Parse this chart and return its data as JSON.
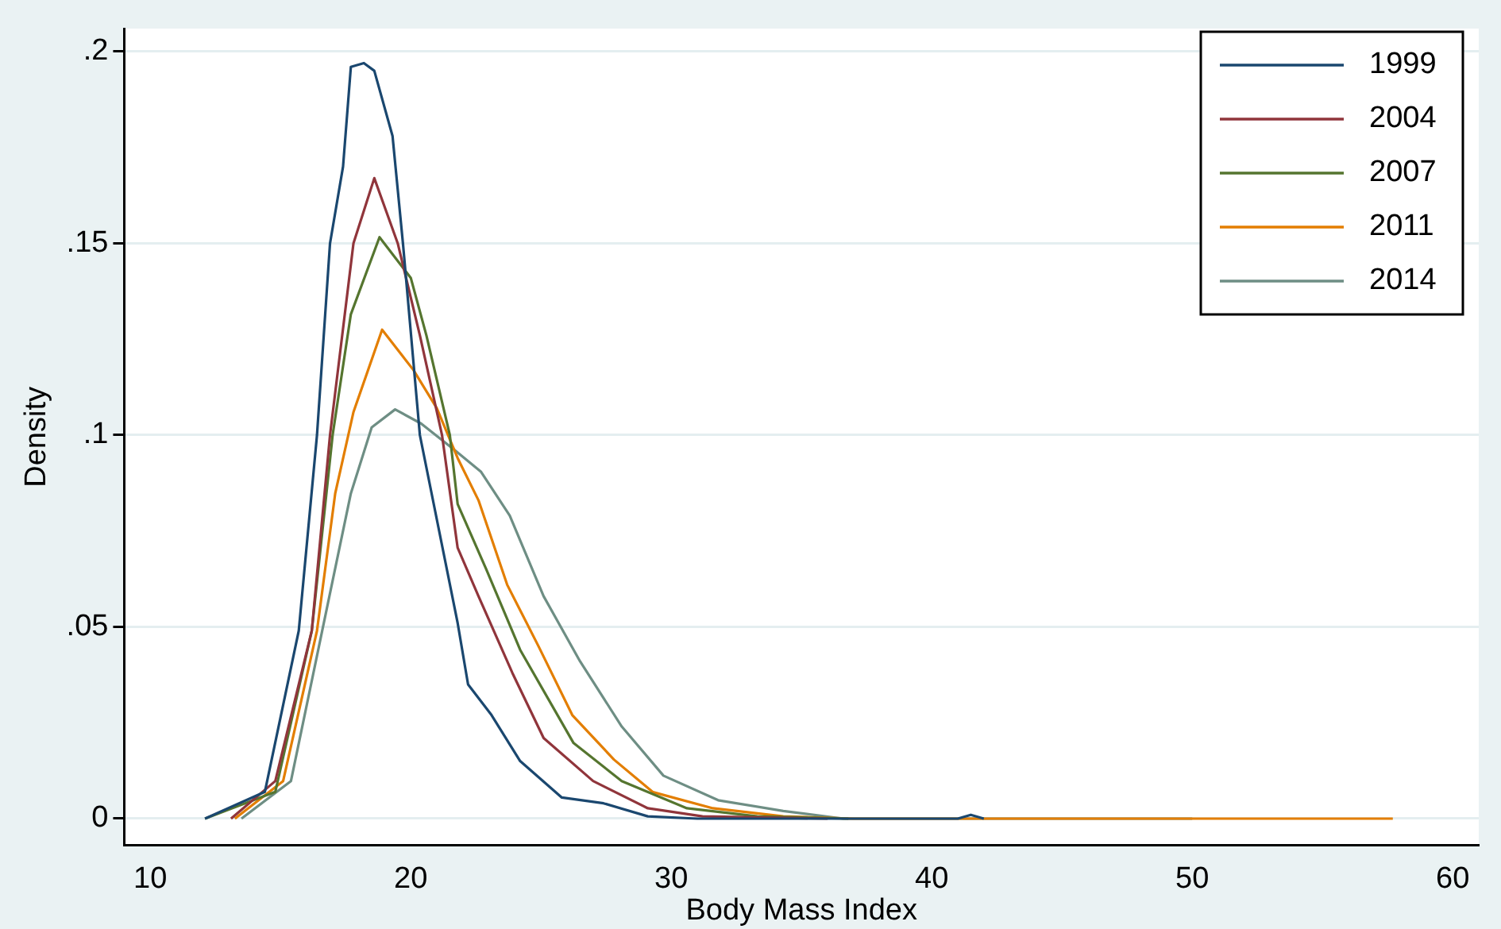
{
  "chart_data": {
    "type": "line",
    "xlabel": "Body Mass Index",
    "ylabel": "Density",
    "xlim": [
      9,
      61
    ],
    "ylim": [
      -0.007,
      0.206
    ],
    "xticks": [
      10,
      20,
      30,
      40,
      50,
      60
    ],
    "yticks": [
      0,
      {
        "value": 0.05,
        "label": ".05"
      },
      {
        "value": 0.1,
        "label": ".1"
      },
      {
        "value": 0.15,
        "label": ".15"
      },
      {
        "value": 0.2,
        "label": ".2"
      }
    ],
    "grid": "y",
    "legend": "top right",
    "marker": "none",
    "line_style": "solid",
    "series": [
      {
        "name": "1999",
        "color": "#1a476f",
        "x": [
          12.1,
          14.4,
          15.7,
          16.4,
          16.9,
          17.4,
          17.7,
          18.2,
          18.6,
          19.3,
          19.7,
          20.35,
          21.8,
          22.2,
          23.1,
          24.2,
          25.8,
          27.4,
          29.1,
          31,
          37,
          41,
          41.5,
          42
        ],
        "values": [
          0,
          0.007,
          0.049,
          0.1,
          0.15,
          0.17,
          0.196,
          0.197,
          0.195,
          0.178,
          0.15,
          0.1,
          0.051,
          0.035,
          0.027,
          0.015,
          0.0055,
          0.004,
          0.0006,
          0,
          0,
          0,
          0.001,
          0
        ]
      },
      {
        "name": "2004",
        "color": "#90353b",
        "x": [
          13.1,
          14.8,
          16.2,
          16.9,
          17.8,
          18.6,
          19.5,
          20.35,
          21.2,
          21.8,
          22.6,
          23.9,
          25.1,
          27,
          29.1,
          31.2,
          36
        ],
        "values": [
          0,
          0.0098,
          0.049,
          0.1,
          0.15,
          0.167,
          0.15,
          0.126,
          0.1,
          0.0706,
          0.058,
          0.038,
          0.021,
          0.0098,
          0.0027,
          0.0006,
          0
        ]
      },
      {
        "name": "2007",
        "color": "#55752f",
        "x": [
          12.1,
          14.8,
          16.2,
          17,
          17.7,
          18.8,
          20,
          20.6,
          21.5,
          21.8,
          22.9,
          24.2,
          26.25,
          28.1,
          30.6,
          33.3,
          36.8
        ],
        "values": [
          0,
          0.007,
          0.049,
          0.1,
          0.1315,
          0.1516,
          0.141,
          0.126,
          0.1,
          0.082,
          0.065,
          0.044,
          0.0197,
          0.0098,
          0.0027,
          0.0006,
          0
        ]
      },
      {
        "name": "2011",
        "color": "#e37e00",
        "x": [
          13.25,
          15.1,
          16.4,
          17.1,
          17.8,
          18.9,
          20.1,
          21,
          21.8,
          22.6,
          23.7,
          24.9,
          26.2,
          27.8,
          29.3,
          31.6,
          34.3,
          37,
          57.7
        ],
        "values": [
          0,
          0.0098,
          0.049,
          0.0848,
          0.106,
          0.1275,
          0.117,
          0.107,
          0.094,
          0.083,
          0.061,
          0.045,
          0.027,
          0.0154,
          0.0069,
          0.0027,
          0.0006,
          0,
          0
        ]
      },
      {
        "name": "2014",
        "color": "#6e8e84",
        "x": [
          13.5,
          15.4,
          16.6,
          17.7,
          18.5,
          19.4,
          20.4,
          21.7,
          22.7,
          23.8,
          25.1,
          26.5,
          28.1,
          29.7,
          31.8,
          34.3,
          36.6,
          50
        ],
        "values": [
          0,
          0.0098,
          0.049,
          0.0848,
          0.102,
          0.1067,
          0.103,
          0.096,
          0.0904,
          0.079,
          0.058,
          0.041,
          0.024,
          0.0112,
          0.0048,
          0.002,
          0,
          0
        ]
      }
    ]
  }
}
